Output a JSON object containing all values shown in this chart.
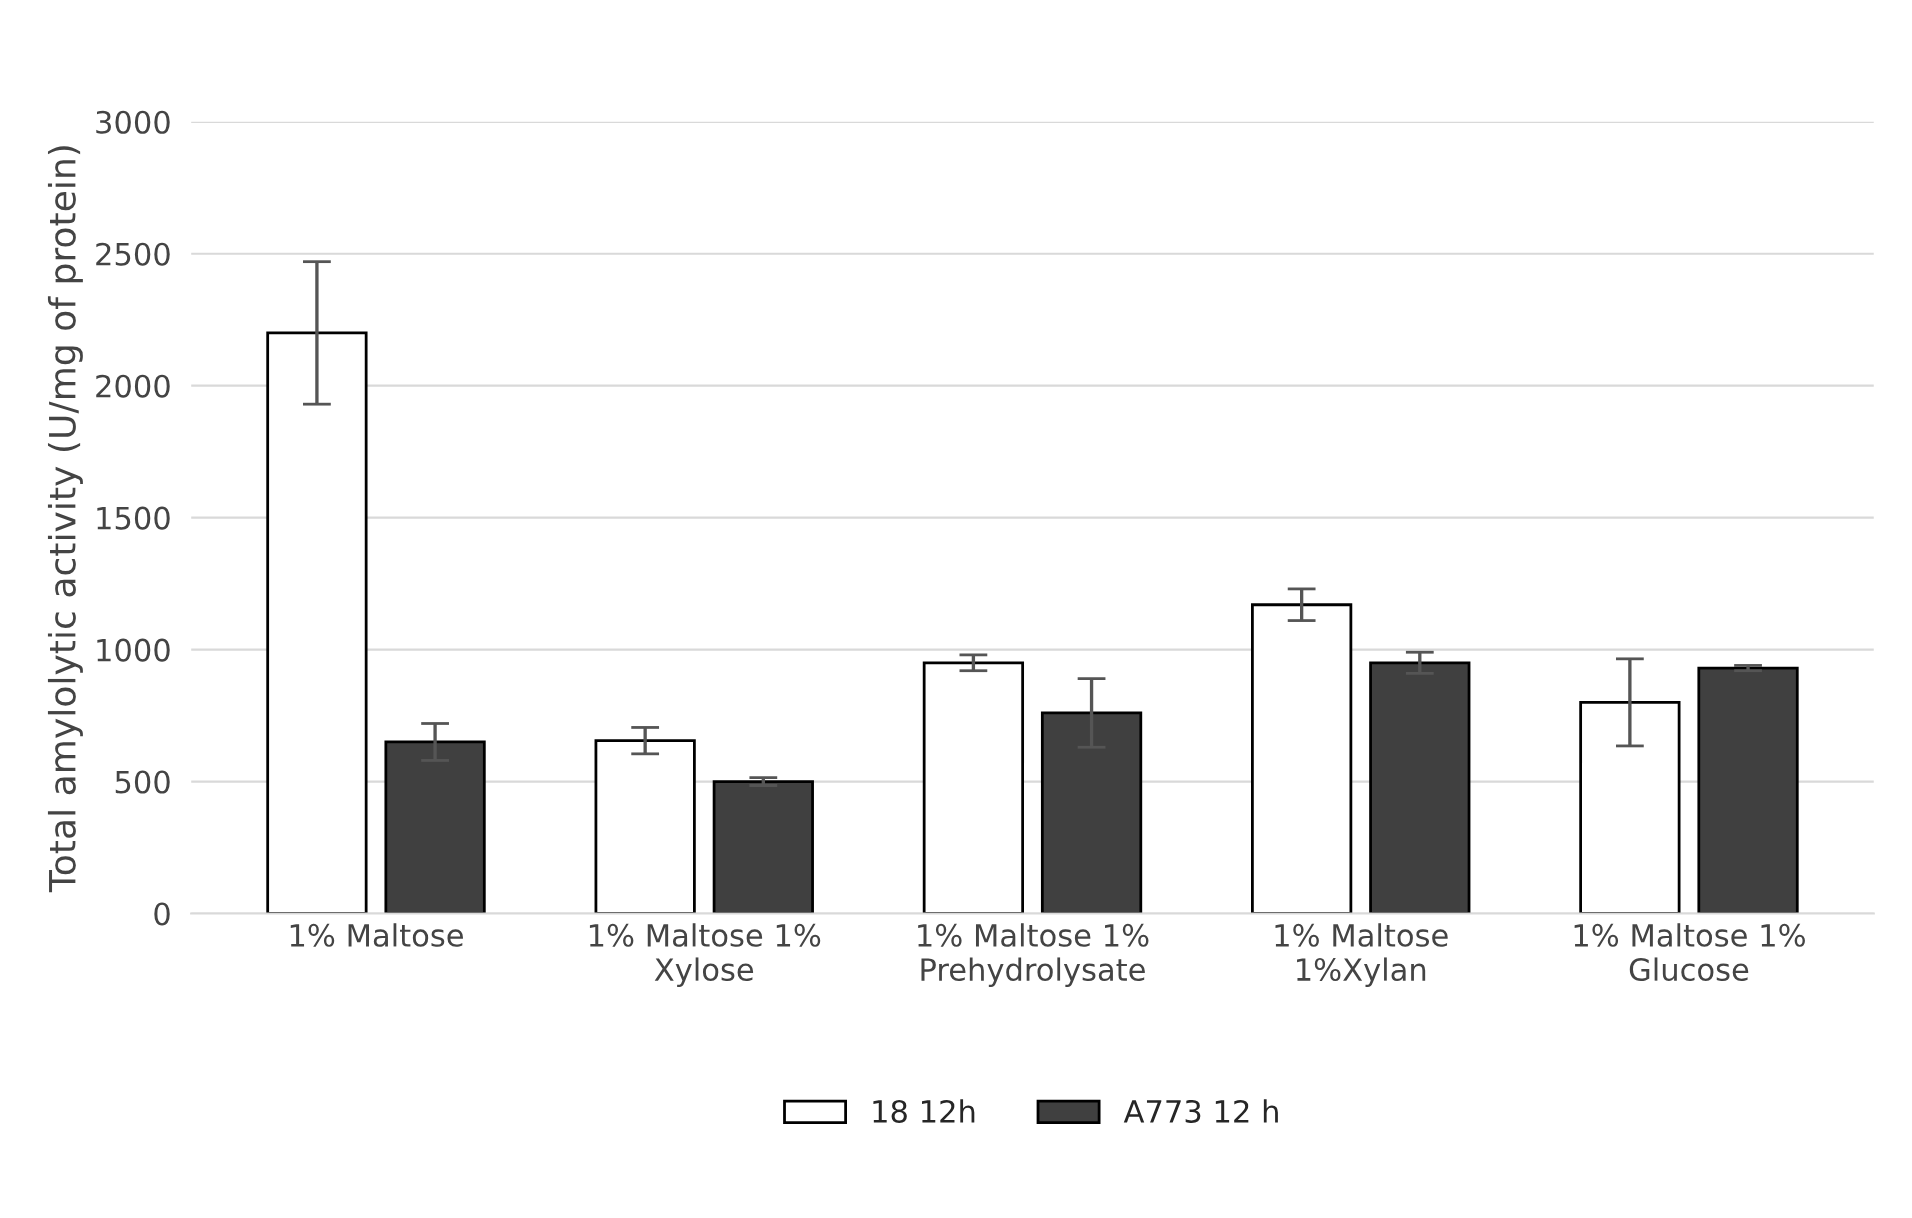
{
  "chart_data": {
    "type": "bar",
    "ylabel": "Total amylolytic activity (U/mg of protein)",
    "categories": [
      "1% Maltose",
      "1% Maltose 1%\nXylose",
      "1% Maltose 1%\nPrehydrolysate",
      "1% Maltose\n1%Xylan",
      "1% Maltose 1%\nGlucose"
    ],
    "series": [
      {
        "name": "18 12h",
        "color": "#ffffff",
        "values": [
          2200,
          655,
          950,
          1170,
          800
        ],
        "errors": [
          270,
          50,
          30,
          60,
          165
        ]
      },
      {
        "name": "A773 12 h",
        "color": "#404040",
        "values": [
          650,
          500,
          760,
          950,
          930
        ],
        "errors": [
          70,
          15,
          130,
          40,
          10
        ]
      }
    ],
    "ylim": [
      0,
      3000
    ],
    "yticks": [
      0,
      500,
      1000,
      1500,
      2000,
      2500,
      3000
    ],
    "grid": "y",
    "legend": "bottom"
  }
}
